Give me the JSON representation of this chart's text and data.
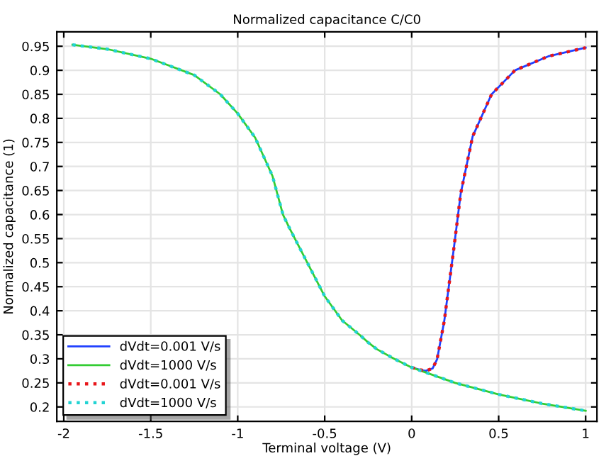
{
  "chart_data": {
    "type": "line",
    "title": "Normalized capacitance C/C0",
    "xlabel": "Terminal voltage (V)",
    "ylabel": "Normalized capacitance (1)",
    "series": [
      {
        "name": "dVdt=0.001 V/s",
        "color": "#1f3fff",
        "line_style": "solid",
        "x": [
          0.0,
          0.05,
          0.08,
          0.12,
          0.146,
          0.187,
          0.241,
          0.282,
          0.35,
          0.459,
          0.594,
          0.785,
          1.0
        ],
        "values": [
          0.282,
          0.277,
          0.275,
          0.28,
          0.299,
          0.378,
          0.526,
          0.644,
          0.762,
          0.85,
          0.9,
          0.929,
          0.947
        ]
      },
      {
        "name": "dVdt=1000 V/s",
        "color": "#33cc33",
        "line_style": "solid",
        "x": [
          -1.95,
          -1.75,
          -1.5,
          -1.25,
          -1.1,
          -1.0,
          -0.9,
          -0.8,
          -0.74,
          -0.7,
          -0.6,
          -0.5,
          -0.4,
          -0.3,
          -0.25,
          -0.2,
          -0.1,
          0.0,
          0.25,
          0.5,
          0.75,
          1.0
        ],
        "values": [
          0.953,
          0.944,
          0.924,
          0.89,
          0.85,
          0.81,
          0.76,
          0.68,
          0.6,
          0.57,
          0.5,
          0.43,
          0.38,
          0.35,
          0.334,
          0.32,
          0.3,
          0.282,
          0.25,
          0.226,
          0.207,
          0.192
        ]
      },
      {
        "name": "dVdt=0.001 V/s",
        "color": "#e8161a",
        "line_style": "dotted",
        "x": [
          0.0,
          0.05,
          0.08,
          0.12,
          0.146,
          0.187,
          0.241,
          0.282,
          0.35,
          0.459,
          0.594,
          0.785,
          1.0
        ],
        "values": [
          0.282,
          0.277,
          0.275,
          0.28,
          0.299,
          0.378,
          0.526,
          0.644,
          0.762,
          0.85,
          0.9,
          0.929,
          0.947
        ]
      },
      {
        "name": "dVdt=1000 V/s",
        "color": "#22d3d3",
        "line_style": "dotted",
        "x": [
          -1.95,
          -1.75,
          -1.5,
          -1.25,
          -1.1,
          -1.0,
          -0.9,
          -0.8,
          -0.74,
          -0.7,
          -0.6,
          -0.5,
          -0.4,
          -0.3,
          -0.25,
          -0.2,
          -0.1,
          0.0,
          0.25,
          0.5,
          0.75,
          1.0
        ],
        "values": [
          0.953,
          0.944,
          0.924,
          0.89,
          0.85,
          0.81,
          0.76,
          0.68,
          0.6,
          0.57,
          0.5,
          0.43,
          0.38,
          0.35,
          0.334,
          0.32,
          0.3,
          0.282,
          0.25,
          0.226,
          0.207,
          0.192
        ]
      }
    ],
    "xlim": [
      -2.04,
      1.065
    ],
    "ylim": [
      0.17,
      0.98
    ],
    "xticks": [
      -2,
      -1.5,
      -1,
      -0.5,
      0,
      0.5,
      1
    ],
    "yticks": [
      0.2,
      0.25,
      0.3,
      0.35,
      0.4,
      0.45,
      0.5,
      0.55,
      0.6,
      0.65,
      0.7,
      0.75,
      0.8,
      0.85,
      0.9,
      0.95
    ],
    "grid": true,
    "legend": "bottom left",
    "marker": "none"
  }
}
